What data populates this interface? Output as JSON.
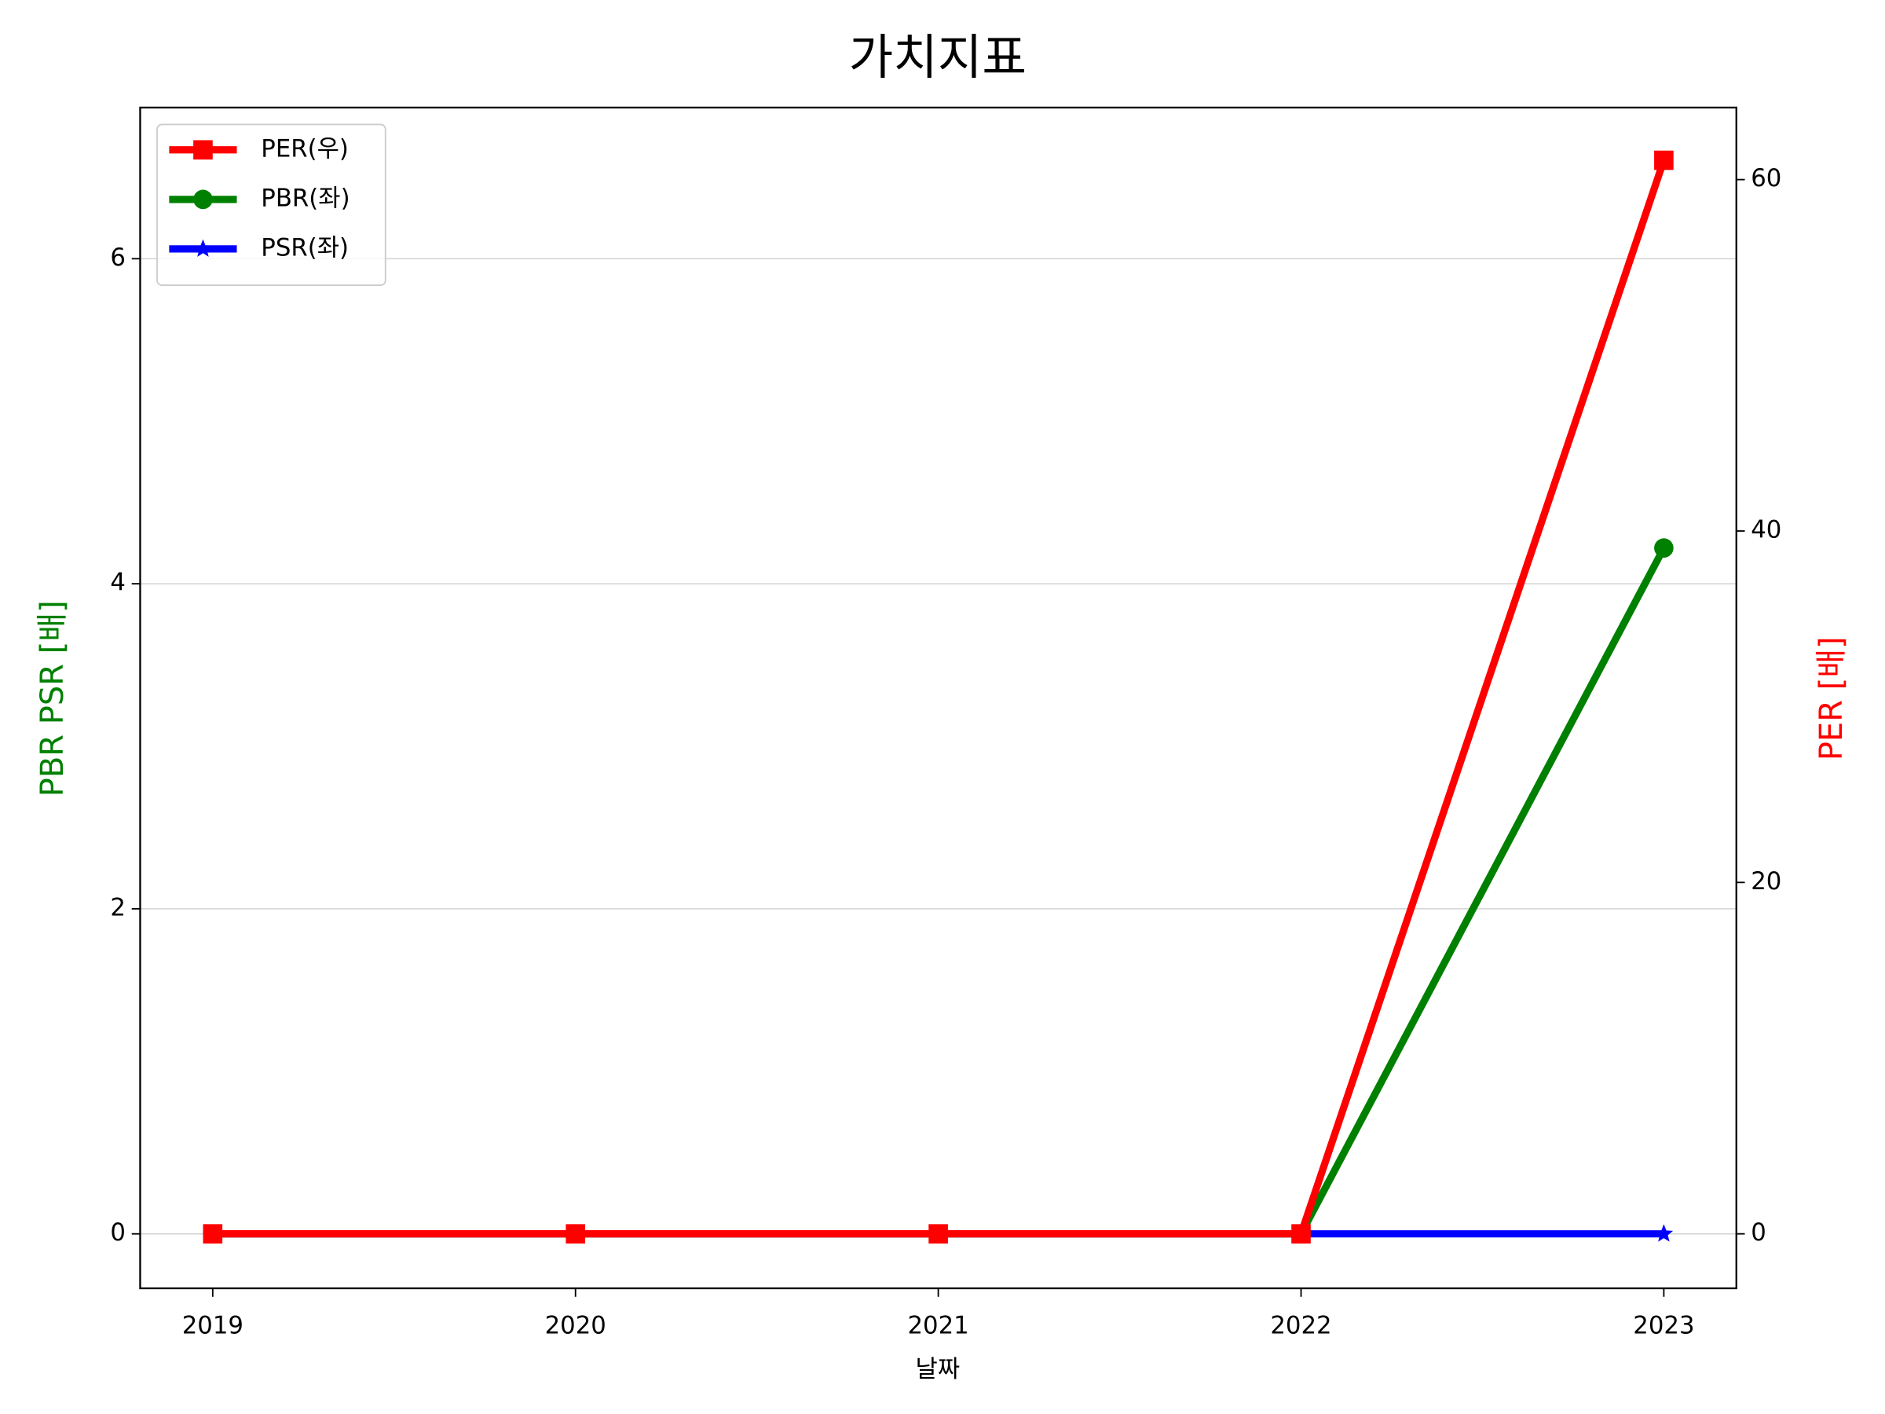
{
  "chart_data": {
    "type": "line",
    "title": "가치지표",
    "xlabel": "날짜",
    "ylabel": "PBR PSR [배]",
    "ylabel_color": "#008000",
    "y2label": "PER [배]",
    "y2label_color": "#ff0000",
    "categories": [
      "2019",
      "2020",
      "2021",
      "2022",
      "2023"
    ],
    "series": [
      {
        "name": "PER(우)",
        "color": "#ff0000",
        "marker": "square",
        "axis": "y2",
        "values": [
          0,
          0,
          0,
          0,
          61.1
        ]
      },
      {
        "name": "PBR(좌)",
        "color": "#008000",
        "marker": "circle",
        "values": [
          0,
          0,
          0,
          0,
          4.22
        ]
      },
      {
        "name": "PSR(좌)",
        "color": "#0000ff",
        "marker": "star",
        "values": [
          0,
          0,
          0,
          0,
          0
        ]
      }
    ],
    "ylim": [
      -0.335,
      6.93
    ],
    "yticks": [
      0,
      2,
      4,
      6
    ],
    "y2lim": [
      -3.1,
      64.1
    ],
    "y2ticks": [
      0,
      20,
      40,
      60
    ],
    "grid": true,
    "legend": "upper left"
  }
}
